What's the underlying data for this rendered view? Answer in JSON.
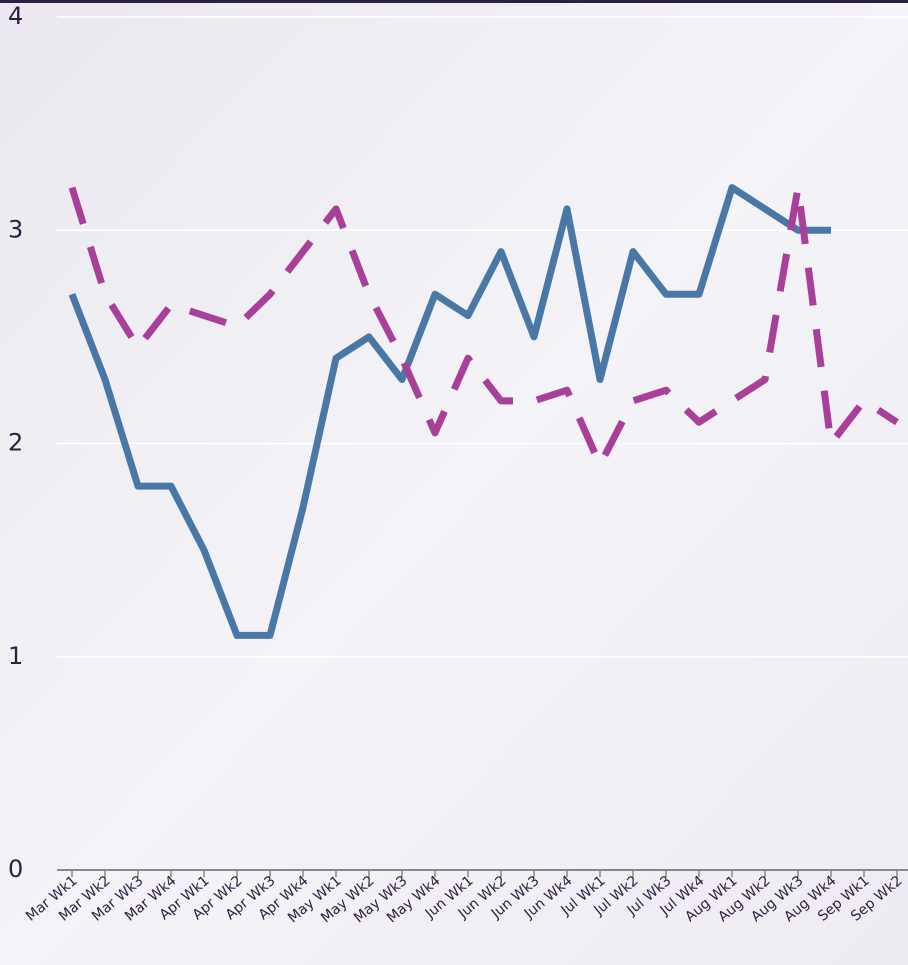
{
  "chart_data": {
    "type": "line",
    "categories": [
      "Mar Wk1",
      "Mar Wk2",
      "Mar Wk3",
      "Mar Wk4",
      "Apr Wk1",
      "Apr Wk2",
      "Apr Wk3",
      "Apr Wk4",
      "May Wk1",
      "May Wk2",
      "May Wk3",
      "May Wk4",
      "Jun Wk1",
      "Jun Wk2",
      "Jun Wk3",
      "Jun Wk4",
      "Jul Wk1",
      "Jul Wk2",
      "Jul Wk3",
      "Jul Wk4",
      "Aug Wk1",
      "Aug Wk2",
      "Aug Wk3",
      "Aug Wk4",
      "Sep Wk1",
      "Sep Wk2"
    ],
    "series": [
      {
        "color": "#4a78a6",
        "dash": false,
        "values": [
          2.7,
          2.3,
          1.8,
          1.8,
          1.5,
          1.1,
          1.1,
          1.7,
          2.4,
          2.5,
          2.3,
          2.7,
          2.6,
          2.9,
          2.5,
          3.1,
          2.3,
          2.9,
          2.7,
          2.7,
          3.2,
          3.1,
          3.0,
          3.0,
          null,
          null
        ]
      },
      {
        "color": "#a8409a",
        "dash": true,
        "values": [
          3.2,
          2.7,
          2.45,
          2.65,
          2.6,
          2.55,
          2.7,
          2.9,
          3.1,
          2.7,
          2.4,
          2.05,
          2.4,
          2.2,
          2.2,
          2.25,
          1.9,
          2.2,
          2.25,
          2.1,
          2.2,
          2.3,
          3.2,
          2.0,
          2.2,
          2.1
        ]
      }
    ],
    "ylim": [
      0,
      4
    ],
    "yticks": [
      0,
      1,
      2,
      3,
      4
    ],
    "grid": true
  }
}
